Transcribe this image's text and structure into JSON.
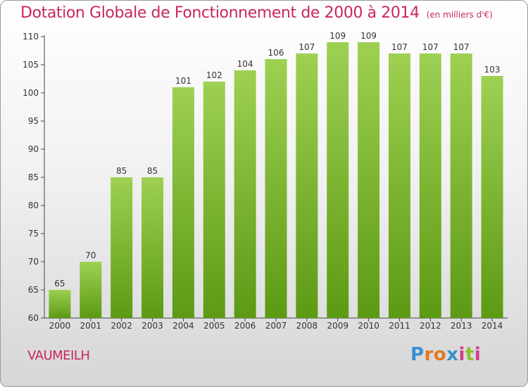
{
  "header": {
    "title": "Dotation Globale de Fonctionnement de 2000 à 2014",
    "unit": "(en milliers d'€)"
  },
  "footer": {
    "commune": "VAUMEILH",
    "logo": {
      "letters": [
        "P",
        "r",
        "o",
        "x",
        "i",
        "t",
        "i"
      ],
      "colors": [
        "#3a8fd0",
        "#e07a20",
        "#e07a20",
        "#3a8fd0",
        "#d23c8a",
        "#8bbf2a",
        "#d23c8a"
      ]
    }
  },
  "colors": {
    "bar_top": "#9ed052",
    "bar_bottom": "#5c9a14",
    "text": "#c8285a",
    "axis": "#444444"
  },
  "chart_data": {
    "type": "bar",
    "categories": [
      "2000",
      "2001",
      "2002",
      "2003",
      "2004",
      "2005",
      "2006",
      "2007",
      "2008",
      "2009",
      "2010",
      "2011",
      "2012",
      "2013",
      "2014"
    ],
    "values": [
      65,
      70,
      85,
      85,
      101,
      102,
      104,
      106,
      107,
      109,
      109,
      107,
      107,
      107,
      103
    ],
    "data_labels": [
      "65",
      "70",
      "85",
      "85",
      "101",
      "102",
      "104",
      "106",
      "107",
      "109",
      "109",
      "107",
      "107",
      "107",
      "103"
    ],
    "y_ticks": [
      "60",
      "65",
      "70",
      "75",
      "80",
      "85",
      "90",
      "95",
      "100",
      "105",
      "110"
    ],
    "ylim": [
      60,
      110
    ],
    "xlabel": "",
    "ylabel": "",
    "grid": false
  }
}
